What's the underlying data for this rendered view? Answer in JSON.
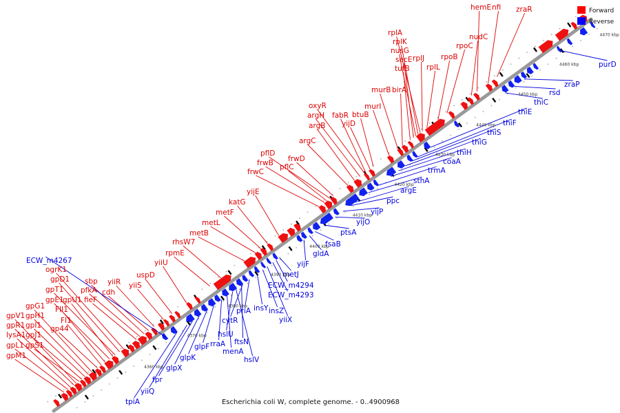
{
  "caption": "Escherichia coli W, complete genome. - 0..4900968",
  "legend": {
    "forward": {
      "label": "Forward",
      "color": "#ff0000"
    },
    "reverse": {
      "label": "Reverse",
      "color": "#0000ff"
    }
  },
  "colors": {
    "backbone": "#999999",
    "forward_gene": "#ee1111",
    "reverse_gene": "#1122ee",
    "tick_marker": "#000000"
  },
  "ticks": [
    "4360 kbp",
    "4370 kbp",
    "4380 kbp",
    "4390 kbp",
    "4400 kbp",
    "4410 kbp",
    "4420 kbp",
    "4430 kbp",
    "4440 kbp",
    "4450 kbp",
    "4460 kbp",
    "4470 kbp"
  ],
  "forward_genes": [
    "gpM1",
    "gpL1",
    "lysA1",
    "gpR1",
    "gpV1",
    "gpS1",
    "gpJ1",
    "gpI1",
    "gpH1",
    "gpG1",
    "gp44",
    "FI1",
    "FII1",
    "gpE1",
    "gpT1",
    "gpU1",
    "gpD1",
    "ogrK1",
    "fieF",
    "pfkA",
    "sbp",
    "cdh",
    "yiiR",
    "yiiS",
    "uspD",
    "yiiU",
    "rpmE",
    "rhsW7",
    "metB",
    "metL",
    "metF",
    "katG",
    "yijE",
    "frwC",
    "frwB",
    "pflD",
    "pflC",
    "frwD",
    "argC",
    "argB",
    "argH",
    "oxyR",
    "fabR",
    "yijD",
    "btuB",
    "murI",
    "murB",
    "birA",
    "tufB",
    "secE",
    "nusG",
    "rplK",
    "rplA",
    "rplJ",
    "rplL",
    "rpoB",
    "rpoC",
    "nudC",
    "hemE",
    "nfi",
    "zraR"
  ],
  "reverse_genes": [
    "ECW_m4267",
    "tpiA",
    "yiiQ",
    "fpr",
    "glpX",
    "glpK",
    "glpF",
    "rraA",
    "menA",
    "hslU",
    "hslV",
    "ftsN",
    "cytR",
    "priA",
    "insY",
    "insZ",
    "yiiX",
    "ECW_m4293",
    "ECW_m4294",
    "metJ",
    "yijF",
    "gldA",
    "fsaB",
    "ptsA",
    "yijO",
    "yijP",
    "ppc",
    "argE",
    "sthA",
    "trmA",
    "coaA",
    "thiH",
    "thiG",
    "thiS",
    "thiF",
    "thiE",
    "thiC",
    "rsd",
    "zraP",
    "purD"
  ]
}
